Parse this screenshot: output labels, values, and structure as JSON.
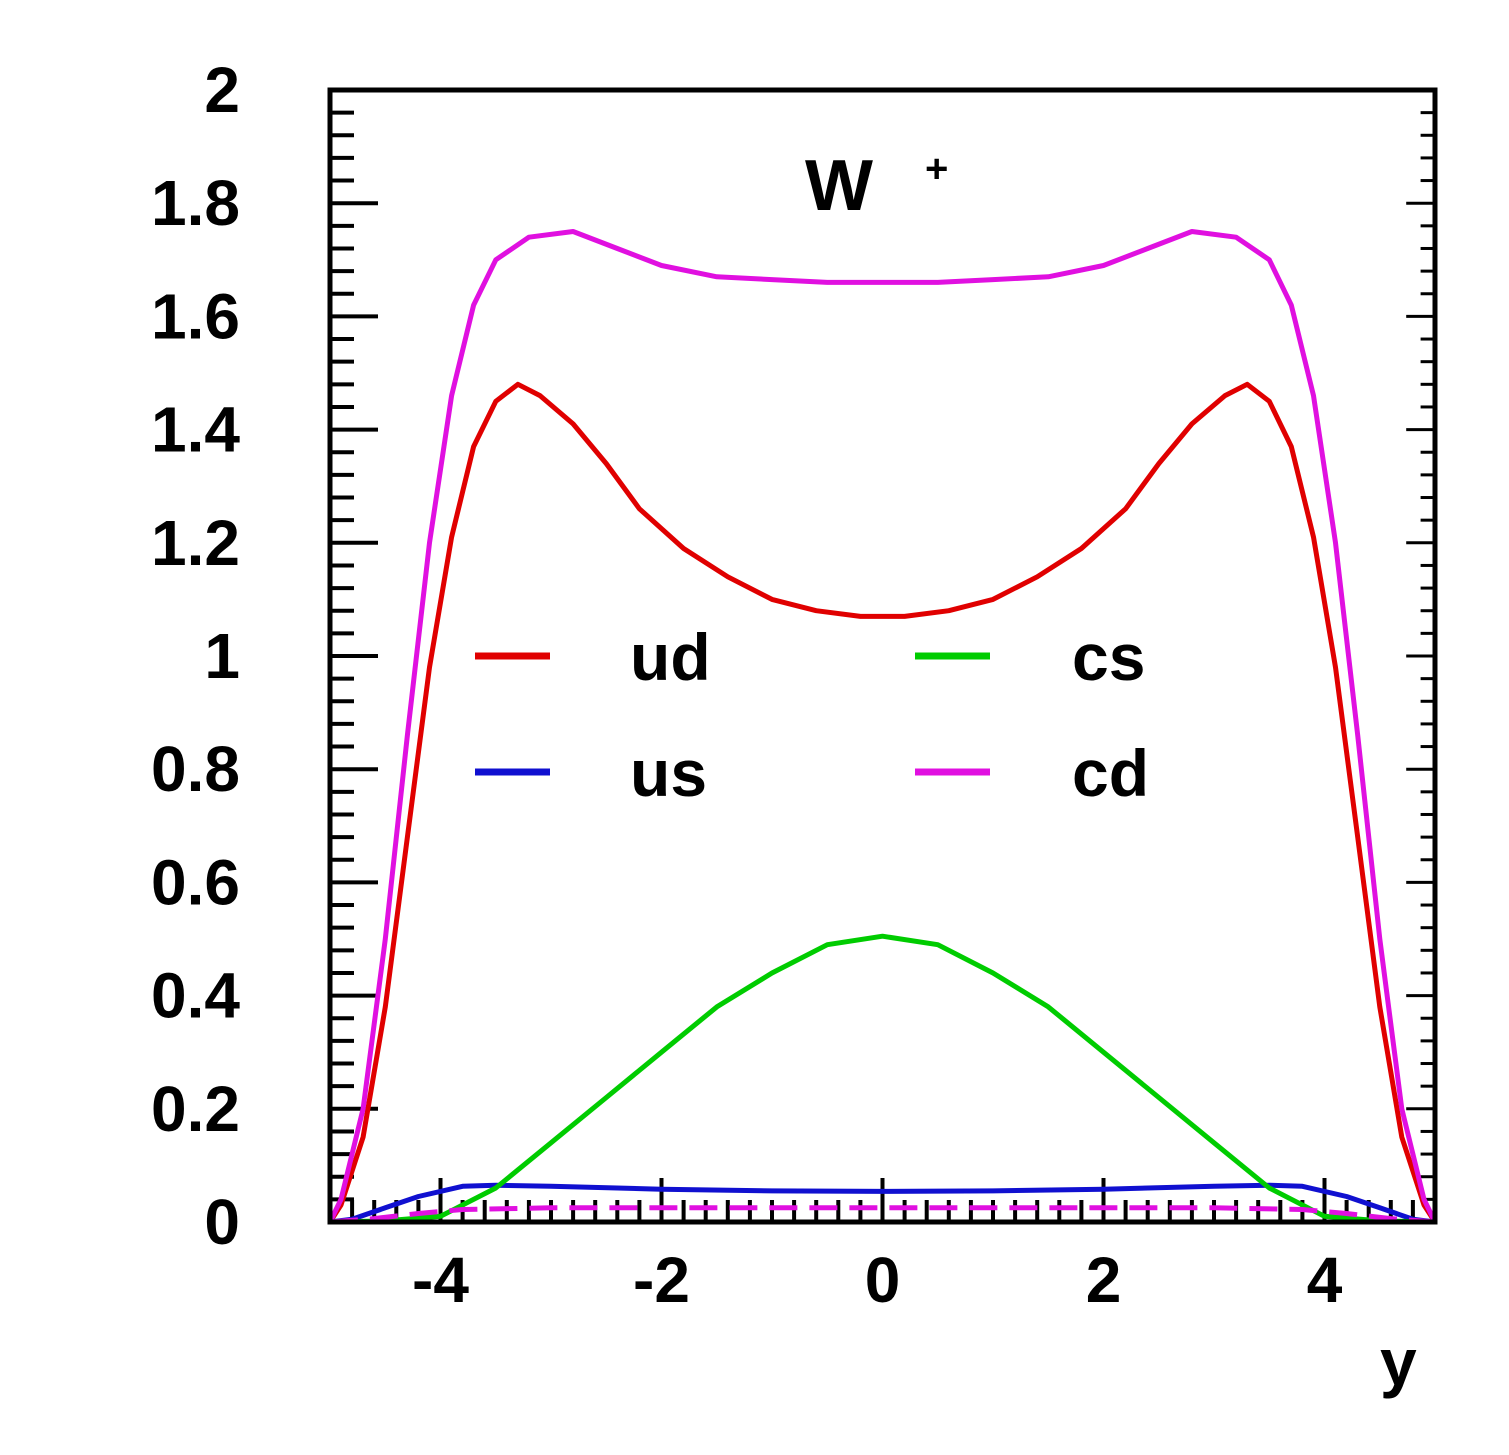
{
  "chart_data": {
    "type": "line",
    "title": "W",
    "title_superscript": "+",
    "xlabel": "y",
    "ylabel": "",
    "xlim": [
      -5,
      5
    ],
    "ylim": [
      0,
      2
    ],
    "x_ticks": [
      -4,
      -2,
      0,
      2,
      4
    ],
    "y_ticks": [
      0,
      0.2,
      0.4,
      0.6,
      0.8,
      1,
      1.2,
      1.4,
      1.6,
      1.8,
      2
    ],
    "x_tick_labels": [
      "-4",
      "-2",
      "0",
      "2",
      "4"
    ],
    "y_tick_labels": [
      "0",
      "0.2",
      "0.4",
      "0.6",
      "0.8",
      "1",
      "1.2",
      "1.4",
      "1.6",
      "1.8",
      "2"
    ],
    "grid": false,
    "legend_position": "center",
    "series": [
      {
        "name": "ud",
        "color": "#e00000",
        "x": [
          -5,
          -4.9,
          -4.7,
          -4.5,
          -4.3,
          -4.1,
          -3.9,
          -3.7,
          -3.5,
          -3.3,
          -3.1,
          -2.8,
          -2.5,
          -2.2,
          -1.8,
          -1.4,
          -1.0,
          -0.6,
          -0.2,
          0.2,
          0.6,
          1.0,
          1.4,
          1.8,
          2.2,
          2.5,
          2.8,
          3.1,
          3.3,
          3.5,
          3.7,
          3.9,
          4.1,
          4.3,
          4.5,
          4.7,
          4.9,
          5
        ],
        "y": [
          0.0,
          0.03,
          0.15,
          0.38,
          0.68,
          0.98,
          1.21,
          1.37,
          1.45,
          1.48,
          1.46,
          1.41,
          1.34,
          1.26,
          1.19,
          1.14,
          1.1,
          1.08,
          1.07,
          1.07,
          1.08,
          1.1,
          1.14,
          1.19,
          1.26,
          1.34,
          1.41,
          1.46,
          1.48,
          1.45,
          1.37,
          1.21,
          0.98,
          0.68,
          0.38,
          0.15,
          0.03,
          0.0
        ]
      },
      {
        "name": "us",
        "color": "#1010d0",
        "x": [
          -5,
          -4.8,
          -4.5,
          -4.2,
          -3.8,
          -3.5,
          -3.0,
          -2.0,
          -1.0,
          0,
          1.0,
          2.0,
          3.0,
          3.5,
          3.8,
          4.2,
          4.5,
          4.8,
          5
        ],
        "y": [
          0.0,
          0.005,
          0.025,
          0.045,
          0.063,
          0.065,
          0.063,
          0.058,
          0.055,
          0.054,
          0.055,
          0.058,
          0.063,
          0.065,
          0.063,
          0.045,
          0.025,
          0.005,
          0.0
        ]
      },
      {
        "name": "cs",
        "color": "#00cc00",
        "x": [
          -5,
          -4.5,
          -4.0,
          -3.5,
          -3.0,
          -2.5,
          -2.0,
          -1.5,
          -1.0,
          -0.5,
          0,
          0.5,
          1.0,
          1.5,
          2.0,
          2.5,
          3.0,
          3.5,
          4.0,
          4.5,
          5
        ],
        "y": [
          0.0,
          0.002,
          0.01,
          0.06,
          0.14,
          0.22,
          0.3,
          0.38,
          0.44,
          0.49,
          0.505,
          0.49,
          0.44,
          0.38,
          0.3,
          0.22,
          0.14,
          0.06,
          0.01,
          0.002,
          0.0
        ]
      },
      {
        "name": "cd",
        "color": "#e010e0",
        "x": [
          -5,
          -4.9,
          -4.7,
          -4.5,
          -4.3,
          -4.1,
          -3.9,
          -3.7,
          -3.5,
          -3.2,
          -2.8,
          -2.4,
          -2.0,
          -1.5,
          -1.0,
          -0.5,
          0,
          0.5,
          1.0,
          1.5,
          2.0,
          2.4,
          2.8,
          3.2,
          3.5,
          3.7,
          3.9,
          4.1,
          4.3,
          4.5,
          4.7,
          4.9,
          5
        ],
        "y": [
          0.0,
          0.04,
          0.2,
          0.5,
          0.86,
          1.2,
          1.46,
          1.62,
          1.7,
          1.74,
          1.75,
          1.72,
          1.69,
          1.67,
          1.665,
          1.66,
          1.66,
          1.66,
          1.665,
          1.67,
          1.69,
          1.72,
          1.75,
          1.74,
          1.7,
          1.62,
          1.46,
          1.2,
          0.86,
          0.5,
          0.2,
          0.04,
          0.0
        ]
      },
      {
        "name": "",
        "color": "#e010e0",
        "dashed": true,
        "x": [
          -5,
          -4.6,
          -4.2,
          -3.8,
          -3.0,
          -2.0,
          0,
          2.0,
          3.0,
          3.8,
          4.2,
          4.6,
          5
        ],
        "y": [
          0.0,
          0.006,
          0.015,
          0.022,
          0.025,
          0.025,
          0.025,
          0.025,
          0.025,
          0.022,
          0.015,
          0.006,
          0.0
        ]
      }
    ],
    "legend": [
      {
        "name": "ud",
        "color": "#e00000"
      },
      {
        "name": "cs",
        "color": "#00cc00"
      },
      {
        "name": "us",
        "color": "#1010d0"
      },
      {
        "name": "cd",
        "color": "#e010e0"
      }
    ]
  }
}
